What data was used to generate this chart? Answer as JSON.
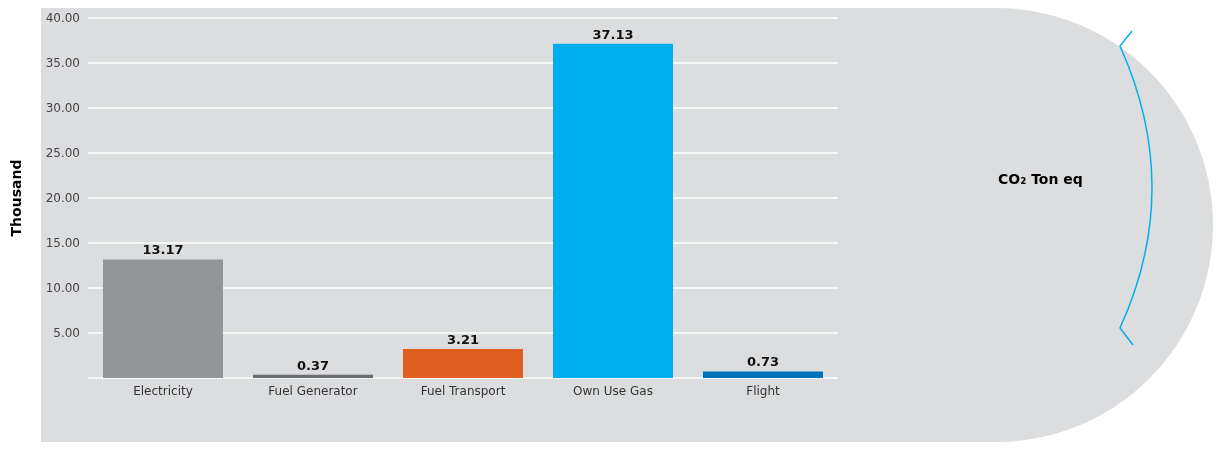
{
  "chart_data": {
    "type": "bar",
    "title": "CO₂ Ton eq",
    "ylabel": "Thousand",
    "categories": [
      "Electricity",
      "Fuel Generator",
      "Fuel Transport",
      "Own Use Gas",
      "Flight"
    ],
    "values": [
      13.17,
      0.37,
      3.21,
      37.13,
      0.73
    ],
    "colors": [
      "#939598",
      "#6d6e71",
      "#e05f20",
      "#00aeef",
      "#0072bc"
    ],
    "ylim": [
      0,
      40
    ],
    "yticks": [
      {
        "value": 5,
        "label": "5.00"
      },
      {
        "value": 10,
        "label": "10.00"
      },
      {
        "value": 15,
        "label": "15.00"
      },
      {
        "value": 20,
        "label": "20.00"
      },
      {
        "value": 25,
        "label": "25.00"
      },
      {
        "value": 30,
        "label": "30.00"
      },
      {
        "value": 35,
        "label": "35.00"
      },
      {
        "value": 40,
        "label": "40.00"
      }
    ],
    "grid": "y",
    "data_labels": true,
    "legend": false
  }
}
